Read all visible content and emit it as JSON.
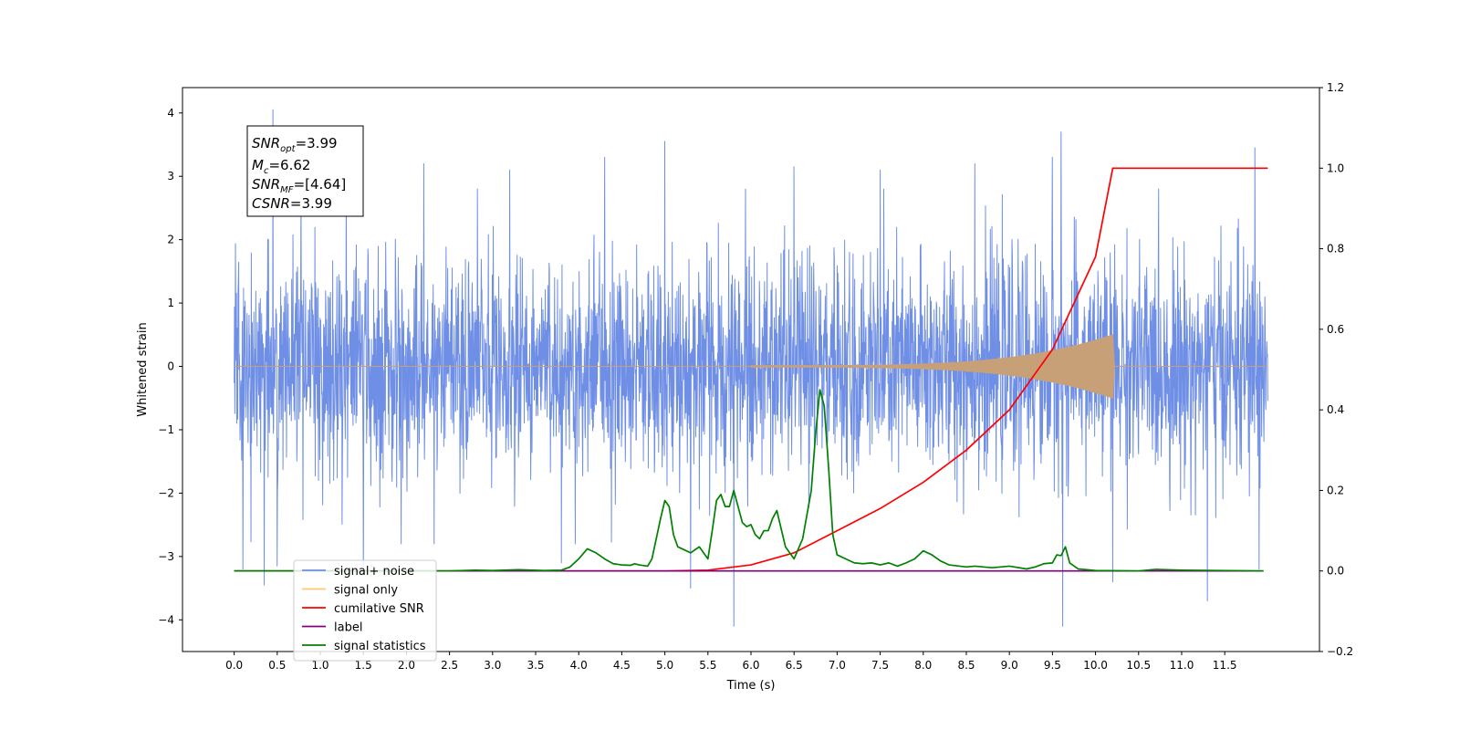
{
  "chart_data": {
    "type": "line",
    "xlabel": "Time (s)",
    "ylabel": "Whitened strain",
    "xlim": [
      -0.6,
      12.6
    ],
    "ylim_left": [
      -4.5,
      4.4
    ],
    "ylim_right": [
      -0.2,
      1.2
    ],
    "x_ticks": [
      0.0,
      0.5,
      1.0,
      1.5,
      2.0,
      2.5,
      3.0,
      3.5,
      4.0,
      4.5,
      5.0,
      5.5,
      6.0,
      6.5,
      7.0,
      7.5,
      8.0,
      8.5,
      9.0,
      9.5,
      10.0,
      10.5,
      11.0,
      11.5
    ],
    "x_tick_labels": [
      "0.0",
      "0.5",
      "1.0",
      "1.5",
      "2.0",
      "2.5",
      "3.0",
      "3.5",
      "4.0",
      "4.5",
      "5.0",
      "5.5",
      "6.0",
      "6.5",
      "7.0",
      "7.5",
      "8.0",
      "8.5",
      "9.0",
      "9.5",
      "10.0",
      "10.5",
      "11.0",
      "11.5"
    ],
    "y_left_ticks": [
      -4,
      -3,
      -2,
      -1,
      0,
      1,
      2,
      3,
      4
    ],
    "y_left_tick_labels": [
      "−4",
      "−3",
      "−2",
      "−1",
      "0",
      "1",
      "2",
      "3",
      "4"
    ],
    "y_right_ticks": [
      -0.2,
      0.0,
      0.2,
      0.4,
      0.6,
      0.8,
      1.0,
      1.2
    ],
    "y_right_tick_labels": [
      "−0.2",
      "0.0",
      "0.2",
      "0.4",
      "0.6",
      "0.8",
      "1.0",
      "1.2"
    ],
    "grid": false,
    "legend_position": "lower-left",
    "legend": [
      {
        "label": "signal+ noise",
        "color": "#6f8fe6"
      },
      {
        "label": "signal only",
        "color": "#ffc870"
      },
      {
        "label": "cumilative SNR",
        "color": "#ff0000"
      },
      {
        "label": "label",
        "color": "#800080"
      },
      {
        "label": "signal statistics",
        "color": "#008000"
      }
    ],
    "annotation": [
      {
        "main": "SNR",
        "sub": "opt",
        "rest": "=3.99"
      },
      {
        "main": "M",
        "sub": "c",
        "rest": "=6.62"
      },
      {
        "main": "SNR",
        "sub": "MF",
        "rest": "=[4.64]"
      },
      {
        "main": "CSNR",
        "sub": "",
        "rest": "=3.99"
      }
    ],
    "series": [
      {
        "name": "signal+ noise",
        "axis": "left",
        "color": "#6f8fe6",
        "x_range": [
          0.0,
          12.0
        ],
        "core_amplitude": 1.4,
        "peaks": [
          {
            "x": 0.05,
            "y": 1.35
          },
          {
            "x": 0.1,
            "y": -3.2
          },
          {
            "x": 0.35,
            "y": -3.45
          },
          {
            "x": 0.45,
            "y": 4.05
          },
          {
            "x": 0.5,
            "y": -3.15
          },
          {
            "x": 1.3,
            "y": 3.15
          },
          {
            "x": 1.5,
            "y": -3.3
          },
          {
            "x": 2.2,
            "y": 3.2
          },
          {
            "x": 3.2,
            "y": 3.1
          },
          {
            "x": 3.8,
            "y": -3.1
          },
          {
            "x": 4.3,
            "y": 3.3
          },
          {
            "x": 5.0,
            "y": 3.55
          },
          {
            "x": 5.3,
            "y": -3.5
          },
          {
            "x": 5.8,
            "y": -4.1
          },
          {
            "x": 6.5,
            "y": 3.15
          },
          {
            "x": 7.5,
            "y": 3.1
          },
          {
            "x": 8.6,
            "y": 3.2
          },
          {
            "x": 9.5,
            "y": 3.3
          },
          {
            "x": 9.6,
            "y": 3.7
          },
          {
            "x": 9.62,
            "y": -4.1
          },
          {
            "x": 10.2,
            "y": -3.4
          },
          {
            "x": 11.3,
            "y": -3.7
          },
          {
            "x": 11.85,
            "y": 3.45
          },
          {
            "x": 11.9,
            "y": -3.2
          }
        ]
      },
      {
        "name": "signal only",
        "axis": "left",
        "color": "#c8a078",
        "type": "chirp",
        "x_range": [
          0.0,
          12.0
        ],
        "start": 6.0,
        "merger": 10.2,
        "peak_amplitude": 0.5
      },
      {
        "name": "cumilative SNR",
        "axis": "right",
        "color": "#ff0000",
        "x": [
          0.0,
          5.0,
          5.5,
          6.0,
          6.5,
          7.0,
          7.5,
          8.0,
          8.5,
          9.0,
          9.5,
          10.0,
          10.2,
          10.21,
          12.0
        ],
        "y": [
          0.0,
          0.0,
          0.002,
          0.015,
          0.045,
          0.1,
          0.155,
          0.22,
          0.3,
          0.4,
          0.55,
          0.78,
          1.0,
          1.0,
          1.0
        ]
      },
      {
        "name": "label",
        "axis": "right",
        "color": "#800080",
        "x": [
          0.0,
          11.95
        ],
        "y": [
          0.0,
          0.0
        ]
      },
      {
        "name": "signal statistics",
        "axis": "right",
        "color": "#008000",
        "x": [
          0.0,
          2.5,
          2.8,
          3.0,
          3.3,
          3.6,
          3.8,
          3.9,
          4.0,
          4.1,
          4.2,
          4.3,
          4.4,
          4.5,
          4.6,
          4.65,
          4.7,
          4.8,
          4.85,
          4.9,
          4.95,
          5.0,
          5.05,
          5.1,
          5.15,
          5.2,
          5.3,
          5.4,
          5.5,
          5.55,
          5.6,
          5.65,
          5.7,
          5.75,
          5.8,
          5.9,
          5.95,
          6.0,
          6.05,
          6.1,
          6.15,
          6.2,
          6.25,
          6.3,
          6.4,
          6.5,
          6.6,
          6.7,
          6.75,
          6.8,
          6.85,
          6.9,
          6.95,
          7.0,
          7.1,
          7.2,
          7.3,
          7.4,
          7.5,
          7.6,
          7.7,
          7.8,
          7.9,
          8.0,
          8.1,
          8.2,
          8.3,
          8.5,
          8.6,
          8.8,
          9.0,
          9.2,
          9.3,
          9.4,
          9.5,
          9.55,
          9.6,
          9.65,
          9.7,
          9.8,
          10.0,
          10.5,
          10.7,
          11.0,
          11.95
        ],
        "y": [
          0.0,
          0.0,
          0.002,
          0.001,
          0.003,
          0.001,
          0.002,
          0.01,
          0.03,
          0.055,
          0.045,
          0.03,
          0.018,
          0.015,
          0.014,
          0.018,
          0.015,
          0.012,
          0.03,
          0.08,
          0.13,
          0.175,
          0.16,
          0.09,
          0.06,
          0.055,
          0.045,
          0.06,
          0.03,
          0.1,
          0.175,
          0.19,
          0.16,
          0.16,
          0.2,
          0.12,
          0.11,
          0.115,
          0.09,
          0.08,
          0.1,
          0.1,
          0.13,
          0.15,
          0.06,
          0.03,
          0.08,
          0.2,
          0.34,
          0.45,
          0.41,
          0.26,
          0.09,
          0.04,
          0.03,
          0.02,
          0.018,
          0.02,
          0.015,
          0.02,
          0.012,
          0.02,
          0.03,
          0.05,
          0.04,
          0.025,
          0.015,
          0.01,
          0.012,
          0.008,
          0.012,
          0.005,
          0.01,
          0.018,
          0.02,
          0.04,
          0.038,
          0.06,
          0.02,
          0.005,
          0.001,
          0.0,
          0.004,
          0.002,
          0.0
        ]
      }
    ]
  }
}
